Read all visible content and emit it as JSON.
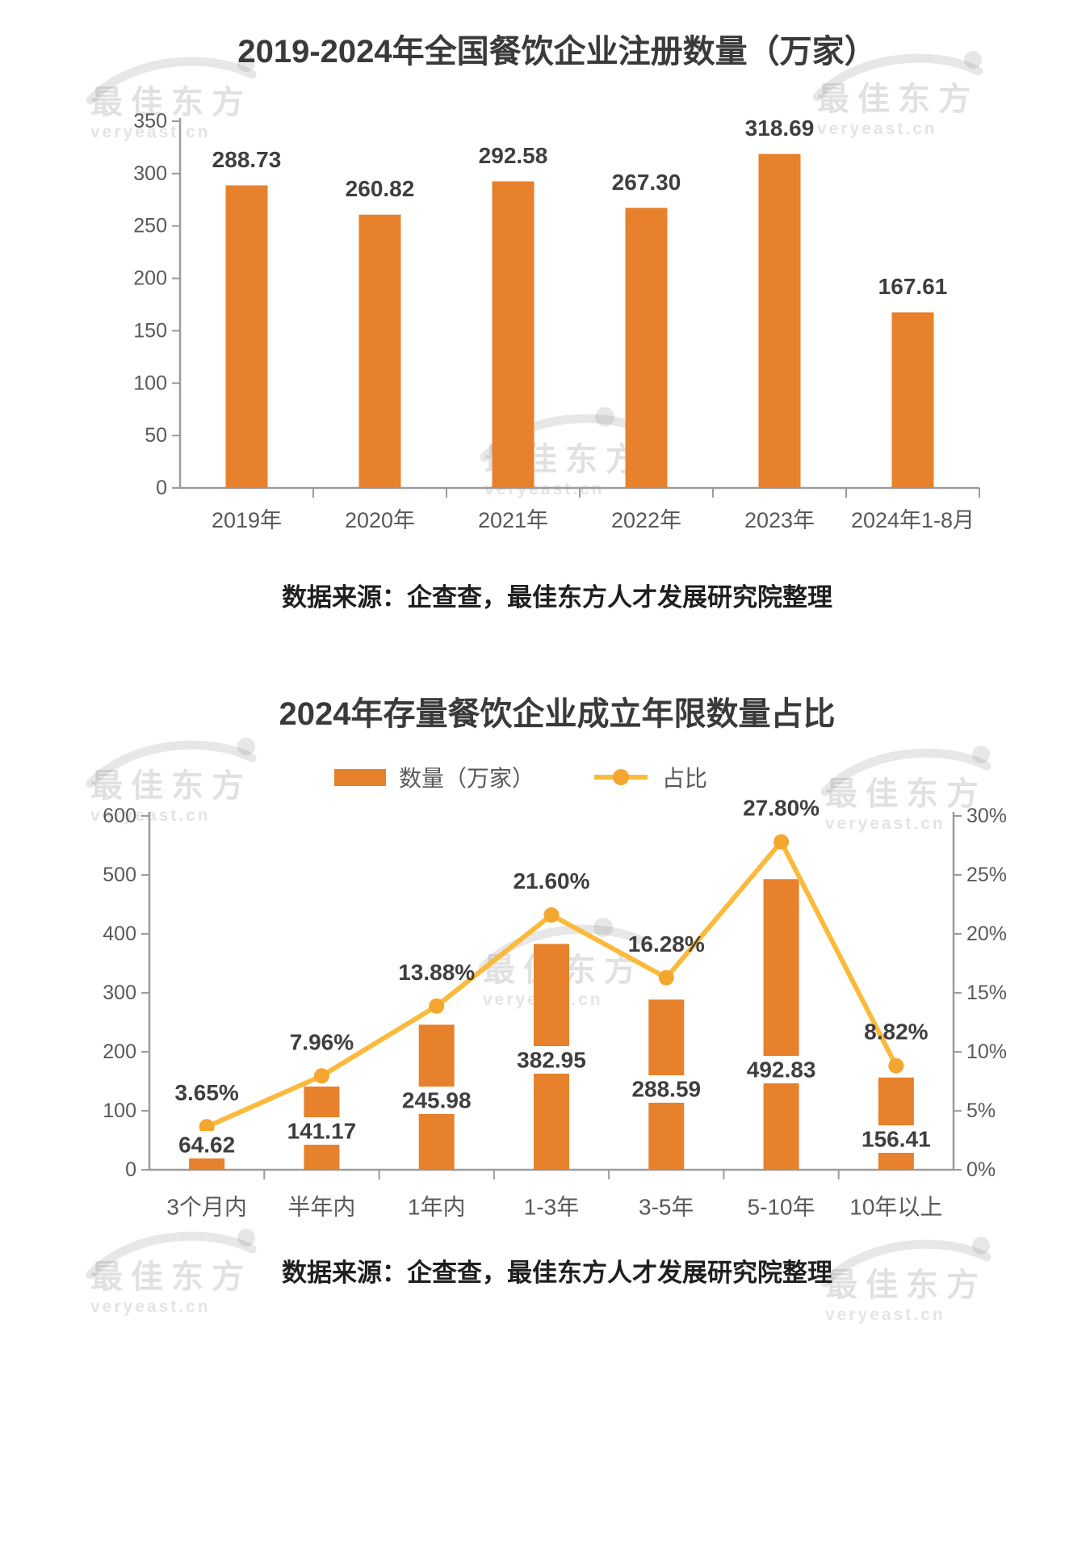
{
  "watermark": {
    "title": "最佳东方",
    "domain": "veryeast.cn"
  },
  "chart_data": [
    {
      "type": "bar",
      "title": "2019-2024年全国餐饮企业注册数量（万家）",
      "categories": [
        "2019年",
        "2020年",
        "2021年",
        "2022年",
        "2023年",
        "2024年1-8月"
      ],
      "values": [
        288.73,
        260.82,
        292.58,
        267.3,
        318.69,
        167.61
      ],
      "ylim": [
        0,
        350
      ],
      "ytick_step": 50,
      "grid": false,
      "legend_position": "none",
      "bar_color": "#E7812C",
      "label_color": "#3f3f3f",
      "axis_color": "#9c9c9c",
      "source": "数据来源：企查查，最佳东方人才发展研究院整理"
    },
    {
      "type": "bar+line",
      "title": "2024年存量餐饮企业成立年限数量占比",
      "categories": [
        "3个月内",
        "半年内",
        "1年内",
        "1-3年",
        "3-5年",
        "5-10年",
        "10年以上"
      ],
      "series": [
        {
          "name": "数量（万家）",
          "type": "bar",
          "axis": "left",
          "values": [
            64.62,
            141.17,
            245.98,
            382.95,
            288.59,
            492.83,
            156.41
          ],
          "color": "#E7812C"
        },
        {
          "name": "占比",
          "type": "line",
          "axis": "right",
          "unit": "%",
          "values": [
            3.65,
            7.96,
            13.88,
            21.6,
            16.28,
            27.8,
            8.82
          ],
          "color": "#FBBA3B",
          "marker_color": "#F4A62F"
        }
      ],
      "ylim_left": [
        0,
        600
      ],
      "ytick_step_left": 100,
      "ylim_right": [
        0,
        30
      ],
      "ytick_step_right": 5,
      "right_tick_format": "percent",
      "grid": false,
      "legend_position": "top",
      "axis_color": "#9c9c9c",
      "label_color": "#3f3f3f",
      "source": "数据来源：企查查，最佳东方人才发展研究院整理"
    }
  ]
}
